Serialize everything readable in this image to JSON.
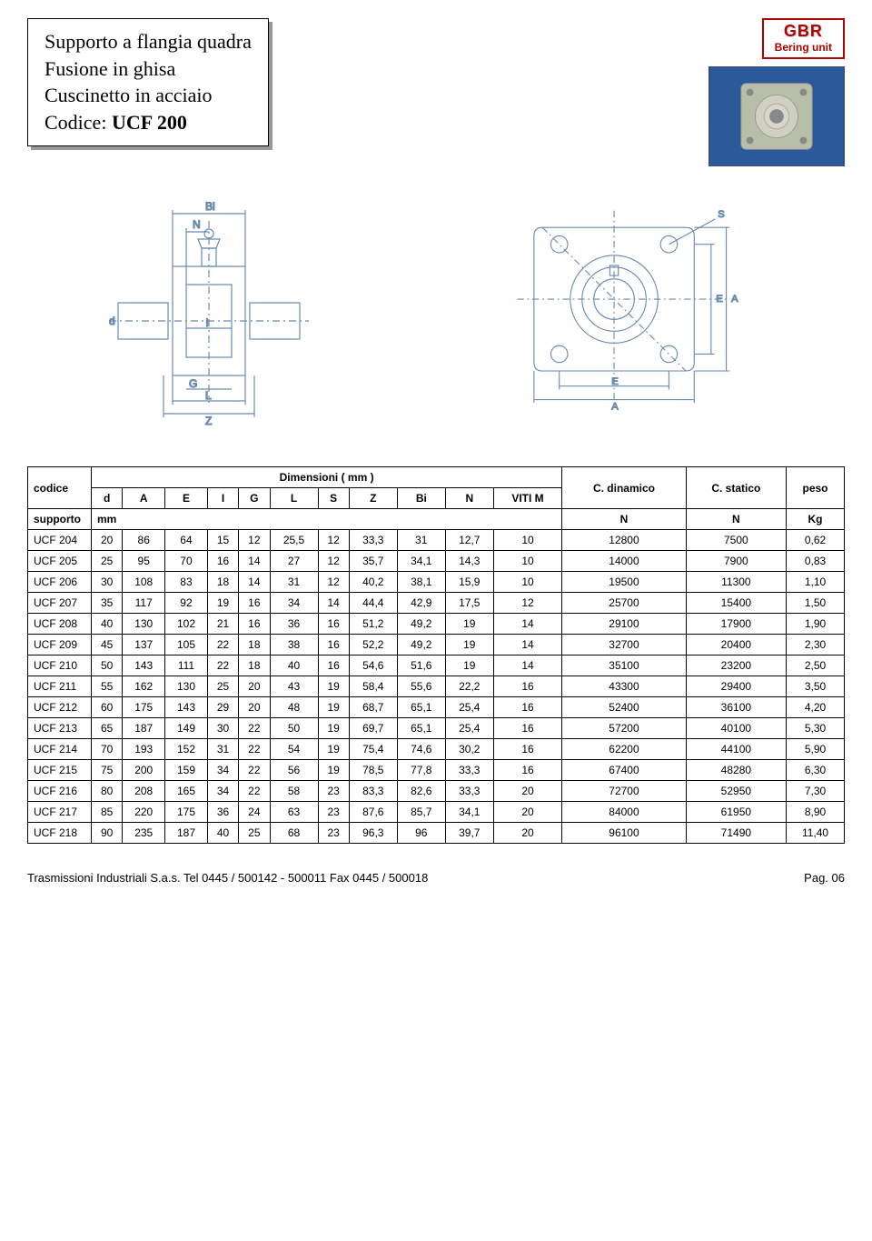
{
  "title": {
    "line1": "Supporto a flangia quadra",
    "line2": "Fusione in ghisa",
    "line3": "Cuscinetto in acciaio",
    "line4_prefix": "Codice: ",
    "line4_code": "UCF 200"
  },
  "brand": {
    "name": "GBR",
    "sub": "Bering unit",
    "border_color": "#b00000",
    "text_color": "#b00000"
  },
  "diagram": {
    "labels": {
      "Bi": "Bi",
      "N": "N",
      "I": "I",
      "G": "G",
      "L": "L",
      "Z": "Z",
      "d": "d",
      "S": "S",
      "E": "E",
      "A": "A"
    },
    "stroke": "#6a8ab0",
    "stroke_width": 1.2
  },
  "photo": {
    "bg_gradient": [
      "#1a3a6a",
      "#2a5a9a",
      "#1a3a6a"
    ],
    "flange_color": "#b8bfa8",
    "bore_color": "#d8d8c8"
  },
  "table": {
    "dim_header": "Dimensioni ( mm )",
    "columns": [
      "codice",
      "d",
      "A",
      "E",
      "I",
      "G",
      "L",
      "S",
      "Z",
      "Bi",
      "N",
      "VITI M",
      "C. dinamico",
      "C. statico",
      "peso"
    ],
    "sub_row": {
      "label": "supporto",
      "unit_mm": "mm",
      "unit_N1": "N",
      "unit_N2": "N",
      "unit_kg": "Kg"
    },
    "rows": [
      [
        "UCF 204",
        "20",
        "86",
        "64",
        "15",
        "12",
        "25,5",
        "12",
        "33,3",
        "31",
        "12,7",
        "10",
        "12800",
        "7500",
        "0,62"
      ],
      [
        "UCF 205",
        "25",
        "95",
        "70",
        "16",
        "14",
        "27",
        "12",
        "35,7",
        "34,1",
        "14,3",
        "10",
        "14000",
        "7900",
        "0,83"
      ],
      [
        "UCF 206",
        "30",
        "108",
        "83",
        "18",
        "14",
        "31",
        "12",
        "40,2",
        "38,1",
        "15,9",
        "10",
        "19500",
        "11300",
        "1,10"
      ],
      [
        "UCF 207",
        "35",
        "117",
        "92",
        "19",
        "16",
        "34",
        "14",
        "44,4",
        "42,9",
        "17,5",
        "12",
        "25700",
        "15400",
        "1,50"
      ],
      [
        "UCF 208",
        "40",
        "130",
        "102",
        "21",
        "16",
        "36",
        "16",
        "51,2",
        "49,2",
        "19",
        "14",
        "29100",
        "17900",
        "1,90"
      ],
      [
        "UCF 209",
        "45",
        "137",
        "105",
        "22",
        "18",
        "38",
        "16",
        "52,2",
        "49,2",
        "19",
        "14",
        "32700",
        "20400",
        "2,30"
      ],
      [
        "UCF 210",
        "50",
        "143",
        "111",
        "22",
        "18",
        "40",
        "16",
        "54,6",
        "51,6",
        "19",
        "14",
        "35100",
        "23200",
        "2,50"
      ],
      [
        "UCF 211",
        "55",
        "162",
        "130",
        "25",
        "20",
        "43",
        "19",
        "58,4",
        "55,6",
        "22,2",
        "16",
        "43300",
        "29400",
        "3,50"
      ],
      [
        "UCF 212",
        "60",
        "175",
        "143",
        "29",
        "20",
        "48",
        "19",
        "68,7",
        "65,1",
        "25,4",
        "16",
        "52400",
        "36100",
        "4,20"
      ],
      [
        "UCF 213",
        "65",
        "187",
        "149",
        "30",
        "22",
        "50",
        "19",
        "69,7",
        "65,1",
        "25,4",
        "16",
        "57200",
        "40100",
        "5,30"
      ],
      [
        "UCF 214",
        "70",
        "193",
        "152",
        "31",
        "22",
        "54",
        "19",
        "75,4",
        "74,6",
        "30,2",
        "16",
        "62200",
        "44100",
        "5,90"
      ],
      [
        "UCF 215",
        "75",
        "200",
        "159",
        "34",
        "22",
        "56",
        "19",
        "78,5",
        "77,8",
        "33,3",
        "16",
        "67400",
        "48280",
        "6,30"
      ],
      [
        "UCF 216",
        "80",
        "208",
        "165",
        "34",
        "22",
        "58",
        "23",
        "83,3",
        "82,6",
        "33,3",
        "20",
        "72700",
        "52950",
        "7,30"
      ],
      [
        "UCF 217",
        "85",
        "220",
        "175",
        "36",
        "24",
        "63",
        "23",
        "87,6",
        "85,7",
        "34,1",
        "20",
        "84000",
        "61950",
        "8,90"
      ],
      [
        "UCF 218",
        "90",
        "235",
        "187",
        "40",
        "25",
        "68",
        "23",
        "96,3",
        "96",
        "39,7",
        "20",
        "96100",
        "71490",
        "11,40"
      ]
    ],
    "border_color": "#000000",
    "font_size": 12
  },
  "footer": {
    "left": "Trasmissioni Industriali S.a.s.    Tel 0445 / 500142  -  500011  Fax  0445 / 500018",
    "right": "Pag. 06"
  }
}
